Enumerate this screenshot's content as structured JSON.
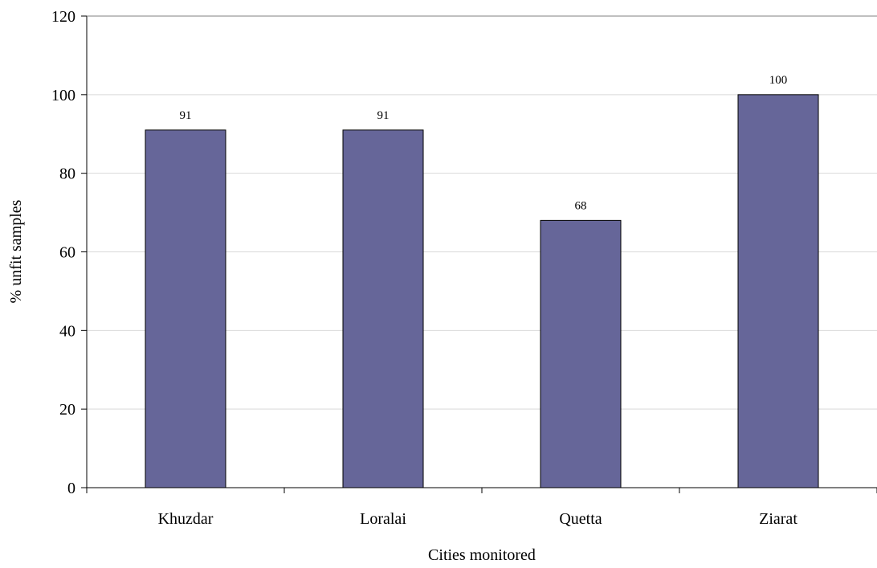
{
  "chart_data": {
    "type": "bar",
    "categories": [
      "Khuzdar",
      "Loralai",
      "Quetta",
      "Ziarat"
    ],
    "values": [
      91,
      91,
      68,
      100
    ],
    "data_labels": [
      "91",
      "91",
      "68",
      "100"
    ],
    "xlabel": "Cities monitored",
    "ylabel": "% unfit samples",
    "ylim": [
      0,
      120
    ],
    "yticks": [
      "0",
      "20",
      "40",
      "60",
      "80",
      "100",
      "120"
    ],
    "grid": true,
    "bar_color": "#666699",
    "grid_color": "#d9d9d9"
  }
}
